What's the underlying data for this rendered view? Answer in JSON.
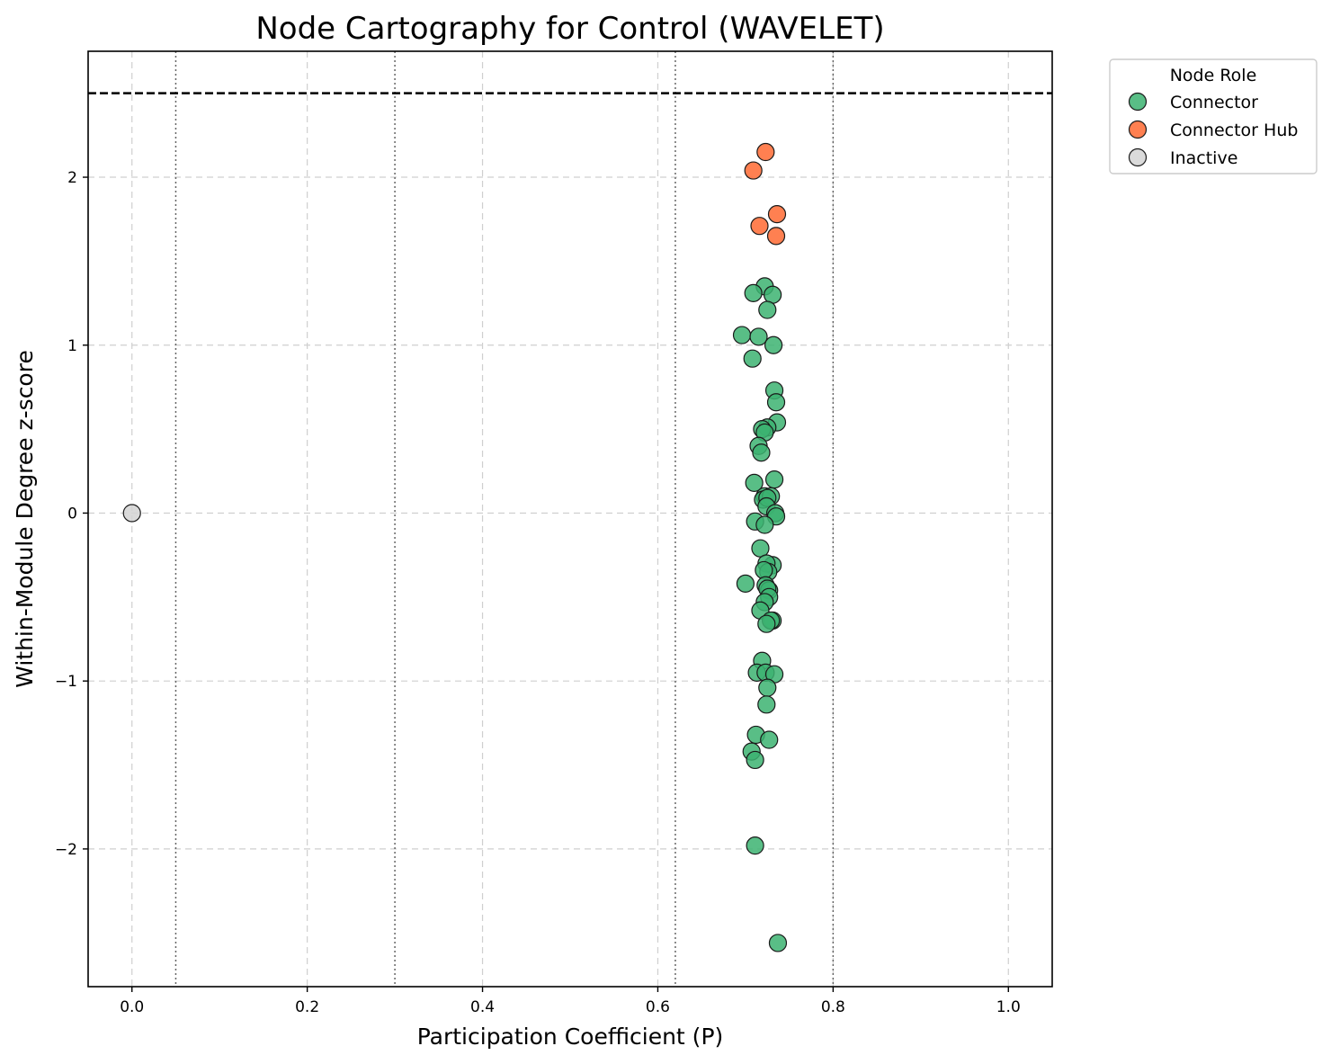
{
  "chart_data": {
    "type": "scatter",
    "title": "Node Cartography for Control (WAVELET)",
    "xlabel": "Participation Coefficient (P)",
    "ylabel": "Within-Module Degree z-score",
    "xlim": [
      -0.05,
      1.05
    ],
    "ylim": [
      -2.82,
      2.75
    ],
    "xticks": [
      0.0,
      0.2,
      0.4,
      0.6,
      0.8,
      1.0
    ],
    "xtick_labels": [
      "0.0",
      "0.2",
      "0.4",
      "0.6",
      "0.8",
      "1.0"
    ],
    "yticks": [
      -2,
      -1,
      0,
      1,
      2
    ],
    "ytick_labels": [
      "−2",
      "−1",
      "0",
      "1",
      "2"
    ],
    "grid": true,
    "reference_lines": {
      "horizontal_dashed": 2.5,
      "vertical_dotted": [
        0.05,
        0.3,
        0.62,
        0.8
      ]
    },
    "legend": {
      "title": "Node Role",
      "placement": "outside-top-right"
    },
    "series": [
      {
        "name": "Connector",
        "color": "#3cb371",
        "points": [
          [
            0.722,
            1.35
          ],
          [
            0.709,
            1.31
          ],
          [
            0.731,
            1.3
          ],
          [
            0.725,
            1.21
          ],
          [
            0.696,
            1.06
          ],
          [
            0.715,
            1.05
          ],
          [
            0.732,
            1.0
          ],
          [
            0.708,
            0.92
          ],
          [
            0.733,
            0.73
          ],
          [
            0.735,
            0.66
          ],
          [
            0.736,
            0.54
          ],
          [
            0.725,
            0.51
          ],
          [
            0.719,
            0.5
          ],
          [
            0.722,
            0.48
          ],
          [
            0.715,
            0.4
          ],
          [
            0.718,
            0.36
          ],
          [
            0.733,
            0.2
          ],
          [
            0.71,
            0.18
          ],
          [
            0.722,
            0.1
          ],
          [
            0.72,
            0.08
          ],
          [
            0.729,
            0.1
          ],
          [
            0.725,
            0.09
          ],
          [
            0.724,
            0.04
          ],
          [
            0.734,
            0.0
          ],
          [
            0.735,
            -0.02
          ],
          [
            0.711,
            -0.05
          ],
          [
            0.722,
            -0.07
          ],
          [
            0.717,
            -0.21
          ],
          [
            0.731,
            -0.31
          ],
          [
            0.724,
            -0.3
          ],
          [
            0.726,
            -0.35
          ],
          [
            0.721,
            -0.34
          ],
          [
            0.7,
            -0.42
          ],
          [
            0.723,
            -0.43
          ],
          [
            0.727,
            -0.46
          ],
          [
            0.725,
            -0.45
          ],
          [
            0.727,
            -0.5
          ],
          [
            0.722,
            -0.53
          ],
          [
            0.717,
            -0.58
          ],
          [
            0.731,
            -0.64
          ],
          [
            0.729,
            -0.64
          ],
          [
            0.724,
            -0.66
          ],
          [
            0.719,
            -0.88
          ],
          [
            0.713,
            -0.95
          ],
          [
            0.723,
            -0.95
          ],
          [
            0.733,
            -0.96
          ],
          [
            0.725,
            -1.04
          ],
          [
            0.724,
            -1.14
          ],
          [
            0.712,
            -1.32
          ],
          [
            0.727,
            -1.35
          ],
          [
            0.707,
            -1.42
          ],
          [
            0.711,
            -1.47
          ],
          [
            0.711,
            -1.98
          ],
          [
            0.737,
            -2.56
          ]
        ]
      },
      {
        "name": "Connector Hub",
        "color": "#ff6a33",
        "points": [
          [
            0.723,
            2.15
          ],
          [
            0.709,
            2.04
          ],
          [
            0.736,
            1.78
          ],
          [
            0.716,
            1.71
          ],
          [
            0.735,
            1.65
          ]
        ]
      },
      {
        "name": "Inactive",
        "color": "#d3d3d3",
        "points": [
          [
            0.0,
            0.0
          ]
        ]
      }
    ]
  }
}
